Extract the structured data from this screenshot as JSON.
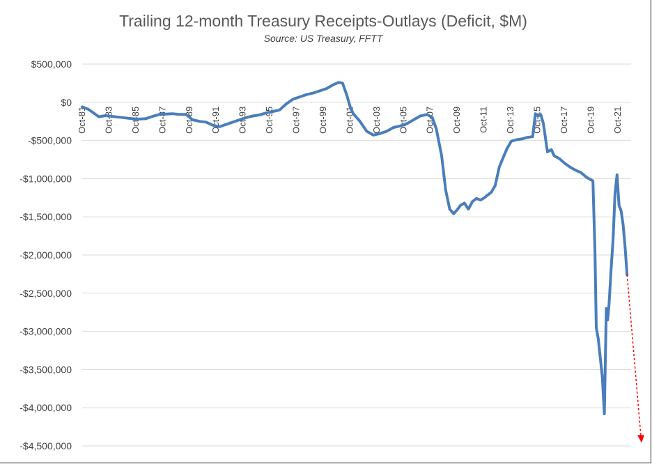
{
  "chart_data": {
    "type": "line",
    "title": "Trailing 12-month Treasury Receipts-Outlays (Deficit, $M)",
    "subtitle": "Source: US Treasury, FFTT",
    "xlabel": "",
    "ylabel": "",
    "ylim": [
      -4500000,
      500000
    ],
    "xlim": [
      1981.75,
      2022.75
    ],
    "grid": "horizontal",
    "legend": "none",
    "y_ticks": [
      500000,
      0,
      -500000,
      -1000000,
      -1500000,
      -2000000,
      -2500000,
      -3000000,
      -3500000,
      -4000000,
      -4500000
    ],
    "y_tick_labels": [
      "$500,000",
      "$0",
      "-$500,000",
      "-$1,000,000",
      "-$1,500,000",
      "-$2,000,000",
      "-$2,500,000",
      "-$3,000,000",
      "-$3,500,000",
      "-$4,000,000",
      "-$4,500,000"
    ],
    "x_ticks": [
      1981.75,
      1983.75,
      1985.75,
      1987.75,
      1989.75,
      1991.75,
      1993.75,
      1995.75,
      1997.75,
      1999.75,
      2001.75,
      2003.75,
      2005.75,
      2007.75,
      2009.75,
      2011.75,
      2013.75,
      2015.75,
      2017.75,
      2019.75,
      2021.75
    ],
    "x_tick_labels": [
      "Oct-81",
      "Oct-83",
      "Oct-85",
      "Oct-87",
      "Oct-89",
      "Oct-91",
      "Oct-93",
      "Oct-95",
      "Oct-97",
      "Oct-99",
      "Oct-01",
      "Oct-03",
      "Oct-05",
      "Oct-07",
      "Oct-09",
      "Oct-11",
      "Oct-13",
      "Oct-15",
      "Oct-17",
      "Oct-19",
      "Oct-21"
    ],
    "series": [
      {
        "color": "#4a7ebb",
        "x": [
          1981.75,
          1982.2,
          1982.6,
          1983.0,
          1983.5,
          1984.0,
          1984.5,
          1985.0,
          1985.5,
          1986.0,
          1986.5,
          1987.0,
          1987.5,
          1988.0,
          1988.5,
          1989.0,
          1989.5,
          1990.0,
          1990.5,
          1991.0,
          1991.5,
          1992.0,
          1992.5,
          1993.0,
          1993.5,
          1994.0,
          1994.5,
          1995.0,
          1995.5,
          1996.0,
          1996.5,
          1997.0,
          1997.5,
          1998.0,
          1998.5,
          1999.0,
          1999.5,
          2000.0,
          2000.5,
          2000.9,
          2001.2,
          2001.5,
          2001.8,
          2002.0,
          2002.5,
          2003.0,
          2003.5,
          2004.0,
          2004.5,
          2005.0,
          2005.5,
          2006.0,
          2006.5,
          2007.0,
          2007.5,
          2007.9,
          2008.2,
          2008.6,
          2008.9,
          2009.2,
          2009.5,
          2009.8,
          2010.0,
          2010.3,
          2010.6,
          2010.9,
          2011.2,
          2011.5,
          2011.8,
          2012.0,
          2012.3,
          2012.6,
          2012.9,
          2013.2,
          2013.5,
          2013.8,
          2014.2,
          2014.6,
          2015.0,
          2015.4,
          2015.6,
          2015.8,
          2016.0,
          2016.2,
          2016.5,
          2016.8,
          2017.0,
          2017.4,
          2017.8,
          2018.2,
          2018.6,
          2019.0,
          2019.4,
          2019.7,
          2019.9,
          2020.05,
          2020.15,
          2020.3,
          2020.45,
          2020.6,
          2020.75,
          2020.9,
          2021.0,
          2021.1,
          2021.25,
          2021.4,
          2021.55,
          2021.7,
          2021.85,
          2022.0,
          2022.15,
          2022.3,
          2022.45,
          2022.6,
          2022.75
        ],
        "y": [
          -60000,
          -90000,
          -140000,
          -190000,
          -175000,
          -185000,
          -195000,
          -205000,
          -215000,
          -220000,
          -215000,
          -185000,
          -160000,
          -155000,
          -150000,
          -160000,
          -160000,
          -230000,
          -250000,
          -260000,
          -300000,
          -320000,
          -290000,
          -260000,
          -230000,
          -200000,
          -180000,
          -165000,
          -140000,
          -120000,
          -100000,
          -20000,
          40000,
          70000,
          100000,
          120000,
          150000,
          180000,
          230000,
          260000,
          250000,
          100000,
          -80000,
          -150000,
          -250000,
          -380000,
          -430000,
          -410000,
          -380000,
          -330000,
          -310000,
          -280000,
          -230000,
          -180000,
          -160000,
          -200000,
          -350000,
          -700000,
          -1150000,
          -1400000,
          -1460000,
          -1400000,
          -1350000,
          -1320000,
          -1400000,
          -1300000,
          -1260000,
          -1280000,
          -1250000,
          -1220000,
          -1180000,
          -1090000,
          -850000,
          -720000,
          -600000,
          -510000,
          -490000,
          -480000,
          -460000,
          -450000,
          -150000,
          -180000,
          -160000,
          -280000,
          -650000,
          -620000,
          -700000,
          -740000,
          -800000,
          -850000,
          -890000,
          -920000,
          -980000,
          -1010000,
          -1030000,
          -1950000,
          -2950000,
          -3100000,
          -3350000,
          -3600000,
          -4080000,
          -2700000,
          -2850000,
          -2650000,
          -2200000,
          -1800000,
          -1200000,
          -950000,
          -1350000,
          -1420000,
          -1600000,
          -1900000,
          -2260000,
          -3500000,
          -4450000
        ],
        "line_style": [
          "solid",
          "solid",
          "solid",
          "solid",
          "solid",
          "solid",
          "solid",
          "solid",
          "solid",
          "solid",
          "solid",
          "solid",
          "solid",
          "solid",
          "solid",
          "solid",
          "solid",
          "solid",
          "solid",
          "solid",
          "solid",
          "solid",
          "solid",
          "solid",
          "solid",
          "solid",
          "solid",
          "solid",
          "solid",
          "solid",
          "solid",
          "solid",
          "solid",
          "solid",
          "solid",
          "solid",
          "solid",
          "solid",
          "solid",
          "solid",
          "solid",
          "solid",
          "solid",
          "solid",
          "solid",
          "solid",
          "solid",
          "solid",
          "solid",
          "solid",
          "solid",
          "solid",
          "solid",
          "solid",
          "solid",
          "solid",
          "solid",
          "solid",
          "solid",
          "solid",
          "solid",
          "solid",
          "solid",
          "solid",
          "solid",
          "solid",
          "solid",
          "solid",
          "solid",
          "solid",
          "solid",
          "solid",
          "solid",
          "solid",
          "solid",
          "solid",
          "solid",
          "solid",
          "solid",
          "solid",
          "solid",
          "solid",
          "solid",
          "solid",
          "solid",
          "solid",
          "solid",
          "solid",
          "solid",
          "solid",
          "solid",
          "solid",
          "solid",
          "solid",
          "solid",
          "solid",
          "solid",
          "solid",
          "solid",
          "solid",
          "solid",
          "solid",
          "solid",
          "solid",
          "solid",
          "solid",
          "solid",
          "solid",
          "solid",
          "solid",
          "solid",
          "solid",
          "solid",
          "dashed",
          "dashed"
        ]
      }
    ],
    "projection": {
      "color": "#ff0000",
      "style": "dashed-arrow",
      "from": [
        2022.45,
        -2260000
      ],
      "to": [
        2022.75,
        -4450000
      ]
    }
  }
}
